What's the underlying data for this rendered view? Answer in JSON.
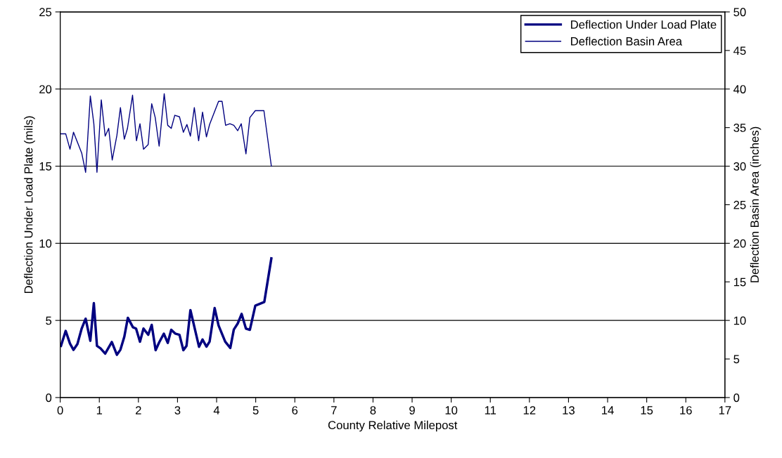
{
  "chart_data": {
    "type": "line",
    "xlabel": "County Relative Milepost",
    "ylabel": "Deflection Under Load Plate (mils)",
    "y2label": "Deflection Basin Area (inches)",
    "xlim": [
      0,
      17
    ],
    "xticks": [
      0,
      1,
      2,
      3,
      4,
      5,
      6,
      7,
      8,
      9,
      10,
      11,
      12,
      13,
      14,
      15,
      16,
      17
    ],
    "ylim": [
      0,
      25
    ],
    "yticks": [
      0,
      5,
      10,
      15,
      20,
      25
    ],
    "y2lim": [
      0,
      50
    ],
    "y2ticks": [
      0,
      5,
      10,
      15,
      20,
      25,
      30,
      35,
      40,
      45,
      50
    ],
    "grid": "y",
    "legend": "top right",
    "marker": "none",
    "series": [
      {
        "name": "Deflection Under Load Plate",
        "color": "#000080",
        "x": [
          0.02,
          0.14,
          0.25,
          0.34,
          0.44,
          0.55,
          0.65,
          0.77,
          0.86,
          0.94,
          1.03,
          1.15,
          1.32,
          1.45,
          1.54,
          1.64,
          1.73,
          1.86,
          1.94,
          2.04,
          2.13,
          2.25,
          2.34,
          2.44,
          2.53,
          2.65,
          2.75,
          2.84,
          2.94,
          3.05,
          3.15,
          3.23,
          3.33,
          3.55,
          3.64,
          3.74,
          3.82,
          3.95,
          4.05,
          4.22,
          4.35,
          4.44,
          4.54,
          4.64,
          4.75,
          4.85,
          4.99,
          5.22,
          5.4
        ],
        "values": [
          3.35,
          4.32,
          3.5,
          3.09,
          3.47,
          4.48,
          5.11,
          3.68,
          6.12,
          3.35,
          3.19,
          2.85,
          3.6,
          2.77,
          3.1,
          3.95,
          5.17,
          4.56,
          4.47,
          3.62,
          4.47,
          4.07,
          4.71,
          3.07,
          3.57,
          4.14,
          3.54,
          4.39,
          4.15,
          4.07,
          3.07,
          3.35,
          5.67,
          3.29,
          3.76,
          3.3,
          3.62,
          5.8,
          4.67,
          3.62,
          3.21,
          4.41,
          4.8,
          5.42,
          4.47,
          4.39,
          5.96,
          6.2,
          9.02
        ]
      },
      {
        "name": "Deflection Basin Area",
        "color": "#000080",
        "axis": "y2",
        "x": [
          0.02,
          0.14,
          0.25,
          0.34,
          0.55,
          0.65,
          0.77,
          0.86,
          0.94,
          1.05,
          1.15,
          1.24,
          1.33,
          1.45,
          1.54,
          1.64,
          1.72,
          1.85,
          1.95,
          2.04,
          2.13,
          2.25,
          2.34,
          2.43,
          2.53,
          2.66,
          2.75,
          2.84,
          2.93,
          3.05,
          3.15,
          3.24,
          3.33,
          3.43,
          3.54,
          3.64,
          3.74,
          3.82,
          4.05,
          4.14,
          4.23,
          4.34,
          4.44,
          4.54,
          4.63,
          4.75,
          4.85,
          4.99,
          5.21,
          5.4
        ],
        "values": [
          34.2,
          34.2,
          32.2,
          34.4,
          31.7,
          29.2,
          39.1,
          35.5,
          29.2,
          38.6,
          33.9,
          34.9,
          30.8,
          34.0,
          37.6,
          33.5,
          34.9,
          39.2,
          33.3,
          35.5,
          32.2,
          32.8,
          38.1,
          36.3,
          32.6,
          39.4,
          35.3,
          34.9,
          36.6,
          36.4,
          34.4,
          35.4,
          33.9,
          37.6,
          33.3,
          37.0,
          33.8,
          35.4,
          38.4,
          38.4,
          35.3,
          35.5,
          35.3,
          34.6,
          35.5,
          31.6,
          36.3,
          37.2,
          37.2,
          30.0
        ]
      }
    ]
  }
}
